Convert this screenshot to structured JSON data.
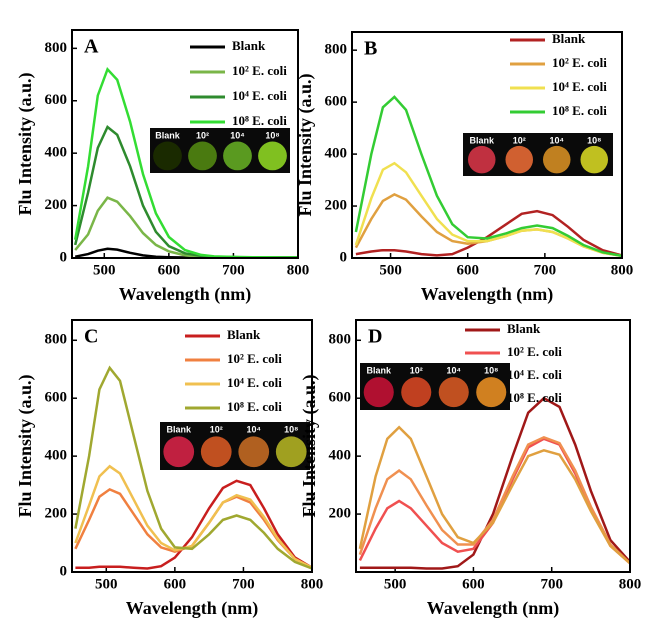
{
  "chart_data": [
    {
      "type": "line",
      "title": "A",
      "xlabel": "Wavelength (nm)",
      "ylabel": "Flu Intensity (a.u.)",
      "xlim": [
        450,
        800
      ],
      "ylim": [
        0,
        870
      ],
      "xticks": [
        500,
        600,
        700,
        800
      ],
      "yticks": [
        0,
        200,
        400,
        600,
        800
      ],
      "x": [
        455,
        475,
        490,
        505,
        520,
        540,
        560,
        580,
        600,
        625,
        650,
        670,
        690,
        710,
        730,
        750,
        775,
        800
      ],
      "series": [
        {
          "name": "Blank",
          "color": "#000000",
          "values": [
            5,
            15,
            28,
            35,
            32,
            20,
            10,
            5,
            3,
            2,
            2,
            2,
            2,
            2,
            2,
            2,
            2,
            2
          ]
        },
        {
          "name": "10² E. coli",
          "color": "#7ab648",
          "values": [
            30,
            90,
            180,
            230,
            215,
            160,
            95,
            50,
            25,
            10,
            5,
            3,
            2,
            2,
            2,
            2,
            2,
            2
          ]
        },
        {
          "name": "10⁴ E. coli",
          "color": "#2e8b2e",
          "values": [
            50,
            250,
            420,
            500,
            470,
            350,
            200,
            100,
            45,
            18,
            8,
            5,
            4,
            3,
            2,
            2,
            2,
            2
          ]
        },
        {
          "name": "10⁸ E. coli",
          "color": "#33dd33",
          "values": [
            70,
            350,
            620,
            720,
            680,
            520,
            320,
            170,
            80,
            30,
            12,
            6,
            5,
            4,
            3,
            3,
            2,
            2
          ]
        }
      ],
      "inset": {
        "labels": [
          "Blank",
          "10²",
          "10⁴",
          "10⁸"
        ],
        "colors": [
          "#1a2a00",
          "#4a7a10",
          "#5a9a20",
          "#80c020"
        ]
      }
    },
    {
      "type": "line",
      "title": "B",
      "xlabel": "Wavelength (nm)",
      "ylabel": "Flu Intensity (a.u.)",
      "xlim": [
        450,
        800
      ],
      "ylim": [
        0,
        870
      ],
      "xticks": [
        500,
        600,
        700,
        800
      ],
      "yticks": [
        0,
        200,
        400,
        600,
        800
      ],
      "x": [
        455,
        475,
        490,
        505,
        520,
        540,
        560,
        580,
        600,
        625,
        650,
        670,
        690,
        710,
        730,
        750,
        775,
        800
      ],
      "series": [
        {
          "name": "Blank",
          "color": "#b22222",
          "values": [
            15,
            25,
            30,
            30,
            25,
            15,
            10,
            15,
            40,
            80,
            130,
            170,
            180,
            165,
            120,
            70,
            30,
            10
          ]
        },
        {
          "name": "10² E. coli",
          "color": "#e0a040",
          "values": [
            40,
            150,
            220,
            245,
            225,
            160,
            100,
            65,
            55,
            65,
            85,
            105,
            110,
            100,
            75,
            45,
            20,
            8
          ]
        },
        {
          "name": "10⁴ E. coli",
          "color": "#f0e050",
          "values": [
            50,
            230,
            340,
            365,
            330,
            240,
            150,
            90,
            65,
            65,
            85,
            105,
            110,
            100,
            75,
            45,
            20,
            8
          ]
        },
        {
          "name": "10⁸ E. coli",
          "color": "#33cc33",
          "values": [
            100,
            400,
            580,
            620,
            570,
            400,
            240,
            130,
            80,
            75,
            95,
            115,
            125,
            115,
            85,
            50,
            22,
            8
          ]
        }
      ],
      "inset": {
        "labels": [
          "Blank",
          "10²",
          "10⁴",
          "10⁸"
        ],
        "colors": [
          "#c03040",
          "#d06030",
          "#c08020",
          "#c0c020"
        ]
      }
    },
    {
      "type": "line",
      "title": "C",
      "xlabel": "Wavelength (nm)",
      "ylabel": "Flu Intensity (a.u.)",
      "xlim": [
        450,
        800
      ],
      "ylim": [
        0,
        870
      ],
      "xticks": [
        500,
        600,
        700,
        800
      ],
      "yticks": [
        0,
        200,
        400,
        600,
        800
      ],
      "x": [
        455,
        475,
        490,
        505,
        520,
        540,
        560,
        580,
        600,
        625,
        650,
        670,
        690,
        710,
        730,
        750,
        775,
        800
      ],
      "series": [
        {
          "name": "Blank",
          "color": "#c81e1e",
          "values": [
            15,
            15,
            18,
            18,
            18,
            15,
            12,
            20,
            50,
            120,
            220,
            290,
            315,
            300,
            220,
            130,
            50,
            15
          ]
        },
        {
          "name": "10² E. coli",
          "color": "#f08040",
          "values": [
            80,
            180,
            260,
            285,
            270,
            200,
            130,
            85,
            70,
            90,
            170,
            240,
            260,
            240,
            180,
            110,
            45,
            15
          ]
        },
        {
          "name": "10⁴ E. coli",
          "color": "#f0c050",
          "values": [
            100,
            230,
            330,
            365,
            340,
            250,
            160,
            100,
            75,
            90,
            170,
            240,
            265,
            250,
            190,
            115,
            45,
            15
          ]
        },
        {
          "name": "10⁸ E. coli",
          "color": "#a0a830",
          "values": [
            150,
            400,
            630,
            705,
            660,
            470,
            280,
            150,
            85,
            80,
            130,
            180,
            195,
            180,
            135,
            80,
            35,
            12
          ]
        }
      ],
      "inset": {
        "labels": [
          "Blank",
          "10²",
          "10⁴",
          "10⁸"
        ],
        "colors": [
          "#c02040",
          "#c05020",
          "#b06020",
          "#a0a020"
        ]
      }
    },
    {
      "type": "line",
      "title": "D",
      "xlabel": "Wavelength (nm)",
      "ylabel": "Flu Intensity (a.u.)",
      "xlim": [
        450,
        800
      ],
      "ylim": [
        0,
        870
      ],
      "xticks": [
        500,
        600,
        700,
        800
      ],
      "yticks": [
        200,
        400,
        600,
        800
      ],
      "x": [
        455,
        475,
        490,
        505,
        520,
        540,
        560,
        580,
        600,
        625,
        650,
        670,
        690,
        710,
        730,
        750,
        775,
        800
      ],
      "series": [
        {
          "name": "Blank",
          "color": "#a01818",
          "values": [
            15,
            15,
            15,
            15,
            15,
            12,
            12,
            20,
            60,
            200,
            400,
            550,
            600,
            570,
            440,
            280,
            110,
            35
          ]
        },
        {
          "name": "10² E. coli",
          "color": "#f05050",
          "values": [
            40,
            150,
            220,
            245,
            220,
            160,
            100,
            70,
            80,
            170,
            320,
            430,
            460,
            440,
            340,
            220,
            90,
            30
          ]
        },
        {
          "name": "10⁴ E. coli",
          "color": "#f09050",
          "values": [
            60,
            220,
            320,
            350,
            320,
            230,
            145,
            95,
            95,
            180,
            330,
            440,
            465,
            445,
            350,
            225,
            95,
            30
          ]
        },
        {
          "name": "10⁸ E. coli",
          "color": "#e0a040",
          "values": [
            80,
            330,
            460,
            500,
            460,
            330,
            200,
            120,
            100,
            170,
            300,
            400,
            420,
            405,
            320,
            210,
            90,
            30
          ]
        }
      ],
      "inset": {
        "labels": [
          "Blank",
          "10²",
          "10⁴",
          "10⁸"
        ],
        "colors": [
          "#b01030",
          "#c04020",
          "#c05020",
          "#d08020"
        ]
      }
    }
  ]
}
